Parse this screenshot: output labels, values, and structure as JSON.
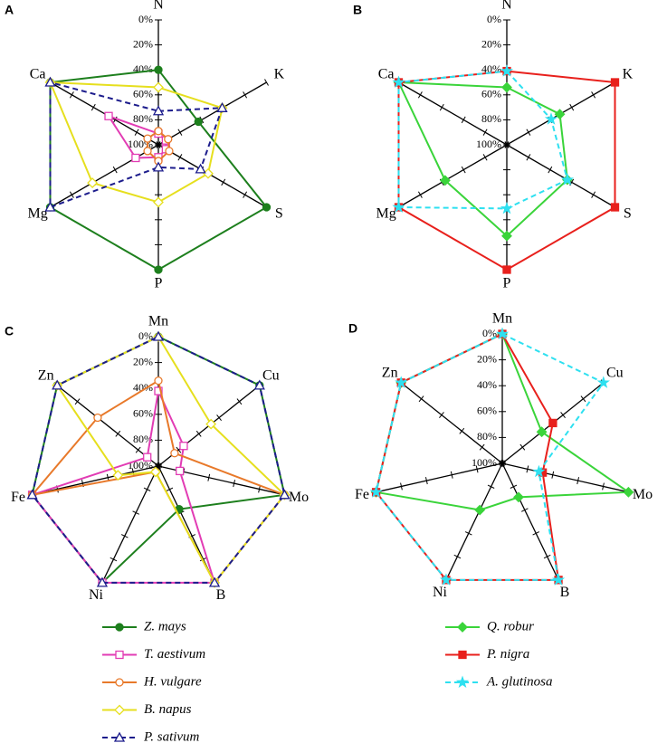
{
  "chart_data": [
    {
      "type": "radar",
      "panel_label": "A",
      "axes": [
        "N",
        "K",
        "S",
        "P",
        "Mg",
        "Ca"
      ],
      "rlim": [
        100,
        0
      ],
      "rticks": [
        {
          "value": 0,
          "label": "0%"
        },
        {
          "value": 20,
          "label": "20%"
        },
        {
          "value": 40,
          "label": "40%"
        },
        {
          "value": 60,
          "label": "60%"
        },
        {
          "value": 80,
          "label": "80%"
        },
        {
          "value": 100,
          "label": "100%"
        }
      ],
      "series": [
        {
          "name": "Z. mays",
          "color": "#1d7f1d",
          "marker": "circle",
          "filled": true,
          "dashed": false,
          "values": [
            40,
            63,
            0,
            0,
            0,
            0
          ]
        },
        {
          "name": "T. aestivum",
          "color": "#e23cb4",
          "marker": "square",
          "filled": false,
          "dashed": false,
          "values": [
            91,
            93,
            93,
            90,
            79,
            54
          ]
        },
        {
          "name": "H. vulgare",
          "color": "#e8792a",
          "marker": "circle",
          "filled": false,
          "dashed": false,
          "values": [
            89,
            91,
            90,
            87,
            90,
            90
          ]
        },
        {
          "name": "B. napus",
          "color": "#e6df1e",
          "marker": "diamond",
          "filled": false,
          "dashed": false,
          "values": [
            54,
            41,
            54,
            54,
            39,
            0
          ]
        },
        {
          "name": "P. sativum",
          "color": "#1c1c8c",
          "marker": "triangle",
          "filled": false,
          "dashed": true,
          "values": [
            73,
            41,
            61,
            82,
            0,
            0
          ]
        }
      ]
    },
    {
      "type": "radar",
      "panel_label": "B",
      "axes": [
        "N",
        "K",
        "S",
        "P",
        "Mg",
        "Ca"
      ],
      "rlim": [
        100,
        0
      ],
      "rticks": [
        {
          "value": 0,
          "label": "0%"
        },
        {
          "value": 20,
          "label": "20%"
        },
        {
          "value": 40,
          "label": "40%"
        },
        {
          "value": 60,
          "label": "60%"
        },
        {
          "value": 80,
          "label": "80%"
        },
        {
          "value": 100,
          "label": "100%"
        }
      ],
      "series": [
        {
          "name": "Q. robur",
          "color": "#3ad43a",
          "marker": "diamond",
          "filled": true,
          "dashed": false,
          "values": [
            54,
            51,
            44,
            27,
            43,
            0
          ]
        },
        {
          "name": "P. nigra",
          "color": "#e8201c",
          "marker": "square",
          "filled": true,
          "dashed": false,
          "values": [
            41,
            0,
            0,
            0,
            0,
            0
          ]
        },
        {
          "name": "A. glutinosa",
          "color": "#2ee0f0",
          "marker": "star",
          "filled": true,
          "dashed": true,
          "values": [
            41,
            59,
            44,
            49,
            0,
            0
          ]
        }
      ]
    },
    {
      "type": "radar",
      "panel_label": "C",
      "axes": [
        "Mn",
        "Cu",
        "Mo",
        "B",
        "Ni",
        "Fe",
        "Zn"
      ],
      "rlim": [
        100,
        0
      ],
      "rticks": [
        {
          "value": 0,
          "label": "0%"
        },
        {
          "value": 20,
          "label": "20%"
        },
        {
          "value": 40,
          "label": "40%"
        },
        {
          "value": 60,
          "label": "60%"
        },
        {
          "value": 80,
          "label": "80%"
        },
        {
          "value": 100,
          "label": "100%"
        }
      ],
      "series": [
        {
          "name": "Z. mays",
          "color": "#1d7f1d",
          "marker": "circle",
          "filled": true,
          "dashed": false,
          "values": [
            0,
            0,
            0,
            63,
            0,
            0,
            0
          ]
        },
        {
          "name": "T. aestivum",
          "color": "#e23cb4",
          "marker": "square",
          "filled": false,
          "dashed": false,
          "values": [
            42,
            75,
            83,
            0,
            0,
            0,
            89
          ]
        },
        {
          "name": "H. vulgare",
          "color": "#e8792a",
          "marker": "circle",
          "filled": false,
          "dashed": false,
          "values": [
            34,
            84,
            0,
            0,
            95,
            0,
            40
          ]
        },
        {
          "name": "B. napus",
          "color": "#e6df1e",
          "marker": "diamond",
          "filled": false,
          "dashed": false,
          "values": [
            0,
            48,
            0,
            0,
            95,
            68,
            0
          ]
        },
        {
          "name": "P. sativum",
          "color": "#1c1c8c",
          "marker": "triangle",
          "filled": false,
          "dashed": true,
          "values": [
            0,
            0,
            0,
            0,
            0,
            0,
            0
          ]
        }
      ]
    },
    {
      "type": "radar",
      "panel_label": "D",
      "axes": [
        "Mn",
        "Cu",
        "Mo",
        "B",
        "Ni",
        "Fe",
        "Zn"
      ],
      "rlim": [
        100,
        0
      ],
      "rticks": [
        {
          "value": 0,
          "label": "0%"
        },
        {
          "value": 20,
          "label": "20%"
        },
        {
          "value": 40,
          "label": "40%"
        },
        {
          "value": 60,
          "label": "60%"
        },
        {
          "value": 80,
          "label": "80%"
        },
        {
          "value": 100,
          "label": "100%"
        }
      ],
      "series": [
        {
          "name": "Q. robur",
          "color": "#3ad43a",
          "marker": "diamond",
          "filled": true,
          "dashed": false,
          "values": [
            0,
            61,
            0,
            71,
            60,
            0,
            0
          ]
        },
        {
          "name": "P. nigra",
          "color": "#e8201c",
          "marker": "square",
          "filled": true,
          "dashed": false,
          "values": [
            0,
            50,
            68,
            0,
            0,
            0,
            0
          ]
        },
        {
          "name": "A. glutinosa",
          "color": "#2ee0f0",
          "marker": "star",
          "filled": true,
          "dashed": true,
          "values": [
            0,
            0,
            71,
            0,
            0,
            0,
            0
          ]
        }
      ]
    }
  ]
}
